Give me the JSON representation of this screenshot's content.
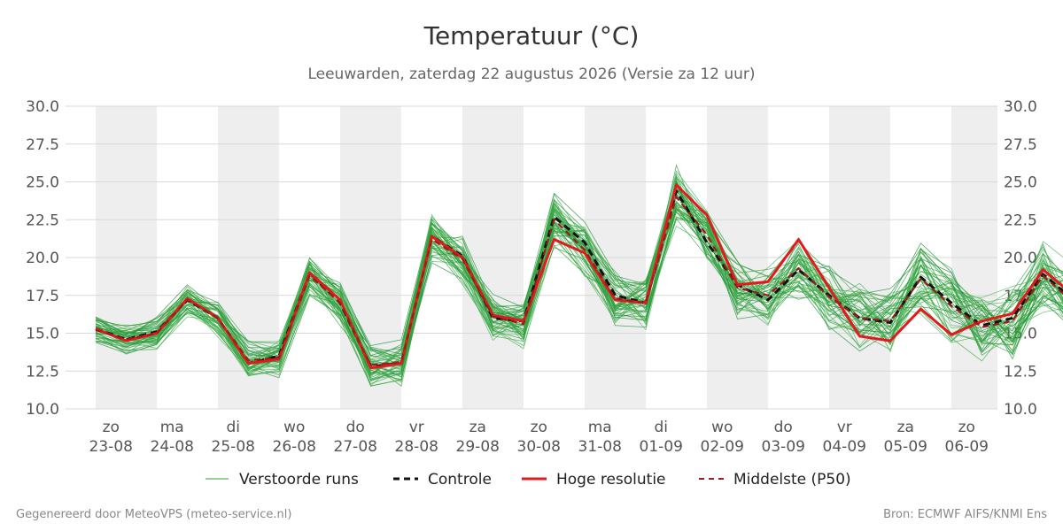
{
  "chart_data": {
    "type": "line",
    "title": "Temperatuur (°C)",
    "subtitle": "Leeuwarden, zaterdag 22 augustus 2026 (Versie za 12 uur)",
    "ylim": [
      10,
      30
    ],
    "yticks": [
      "10.0",
      "12.5",
      "15.0",
      "17.5",
      "20.0",
      "22.5",
      "25.0",
      "27.5",
      "30.0"
    ],
    "x_start": "2026-08-22T18:00",
    "x_step_hours": 12,
    "x_ticks": [
      {
        "day": "zo",
        "date": "23-08"
      },
      {
        "day": "ma",
        "date": "24-08"
      },
      {
        "day": "di",
        "date": "25-08"
      },
      {
        "day": "wo",
        "date": "26-08"
      },
      {
        "day": "do",
        "date": "27-08"
      },
      {
        "day": "vr",
        "date": "28-08"
      },
      {
        "day": "za",
        "date": "29-08"
      },
      {
        "day": "zo",
        "date": "30-08"
      },
      {
        "day": "ma",
        "date": "31-08"
      },
      {
        "day": "di",
        "date": "01-09"
      },
      {
        "day": "wo",
        "date": "02-09"
      },
      {
        "day": "do",
        "date": "03-09"
      },
      {
        "day": "vr",
        "date": "04-09"
      },
      {
        "day": "za",
        "date": "05-09"
      },
      {
        "day": "zo",
        "date": "06-09"
      }
    ],
    "series": [
      {
        "name": "Verstoorde runs",
        "color": "#2ca02c",
        "style": "thin"
      },
      {
        "name": "Controle",
        "color": "#111111",
        "style": "dashed",
        "values": [
          15.3,
          14.6,
          15.1,
          17.2,
          16.0,
          13.0,
          13.5,
          19.0,
          17.0,
          12.8,
          13.0,
          21.4,
          20.1,
          16.0,
          15.8,
          22.7,
          21.0,
          17.5,
          17.0,
          24.4,
          21.0,
          18.2,
          17.2,
          19.2,
          17.5,
          16.0,
          15.7,
          18.7,
          17.0,
          15.5,
          16.0,
          18.9,
          17.2,
          15.4,
          15.4,
          18.9,
          16.8,
          15.2,
          15.0,
          18.6,
          16.0,
          15.5,
          15.3,
          18.6,
          14.8,
          12.7,
          14.2,
          19.8,
          17.8,
          15.6,
          16.5,
          21.1,
          20.0,
          16.2,
          16.0,
          22.9,
          22.3,
          18.6,
          17.7,
          21.9
        ]
      },
      {
        "name": "Hoge resolutie",
        "color": "#e31a1c",
        "style": "solid",
        "values": [
          15.3,
          14.5,
          15.0,
          17.3,
          16.0,
          13.0,
          13.3,
          19.0,
          17.2,
          12.7,
          13.0,
          21.4,
          20.0,
          16.2,
          15.8,
          21.2,
          20.3,
          17.2,
          17.0,
          24.8,
          22.8,
          18.2,
          18.4,
          21.2,
          18.0,
          14.8,
          14.5,
          16.6,
          14.9,
          15.8,
          16.3,
          19.2,
          17.5,
          16.1,
          15.9,
          19.3,
          17.2,
          15.0,
          14.6,
          18.2,
          16.0,
          15.5,
          15.0,
          18.2,
          15.2,
          13.0,
          14.0,
          18.5,
          16.5,
          14.5,
          14.4,
          18.2,
          16.0,
          14.0,
          14.2,
          18.3,
          16.0,
          14.3,
          14.5,
          18.2
        ]
      },
      {
        "name": "Middelste (P50)",
        "color": "#9b1c1c",
        "style": "dashed",
        "values": [
          15.2,
          14.6,
          15.0,
          17.2,
          16.0,
          13.2,
          13.4,
          18.8,
          17.0,
          12.9,
          13.1,
          21.2,
          19.9,
          16.1,
          15.6,
          22.5,
          20.5,
          17.3,
          17.0,
          24.0,
          21.5,
          18.0,
          17.5,
          19.3,
          17.4,
          16.0,
          15.8,
          18.6,
          16.8,
          15.4,
          15.8,
          18.8,
          17.0,
          15.4,
          15.4,
          18.8,
          16.9,
          15.1,
          14.9,
          18.4,
          15.9,
          14.4,
          14.5,
          18.0,
          15.6,
          14.8,
          14.8,
          18.2,
          16.3,
          14.9,
          14.6,
          18.1,
          16.0,
          14.2,
          14.3,
          18.3,
          16.2,
          14.4,
          14.6,
          18.1
        ]
      }
    ],
    "legend": {
      "position": "bottom"
    },
    "grid": true
  },
  "footer": {
    "left": "Gegenereerd door MeteoVPS (meteo-service.nl)",
    "right": "Bron: ECMWF AIFS/KNMI Ens"
  }
}
